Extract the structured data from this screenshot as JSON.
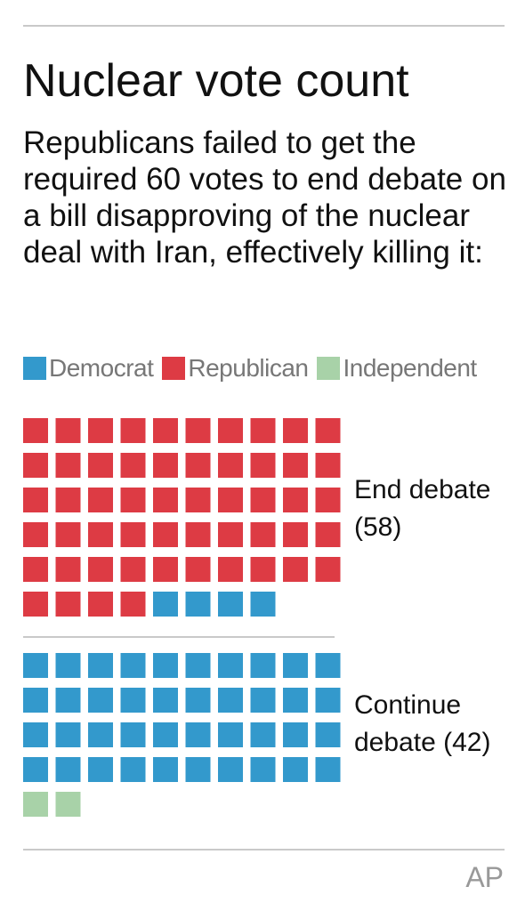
{
  "title": "Nuclear vote count",
  "subtitle": "Republicans failed to get the required 60 votes to end debate on a bill disapproving of the nuclear deal with Iran, effectively killing it:",
  "legend": [
    {
      "name": "Democrat",
      "color": "#3399cc"
    },
    {
      "name": "Republican",
      "color": "#dd3b44"
    },
    {
      "name": "Independent",
      "color": "#a8d2a8"
    }
  ],
  "credit": "AP",
  "chart_data": {
    "type": "waffle",
    "title": "Nuclear vote count",
    "legend_position": "top",
    "grid": false,
    "units_per_square": 1,
    "columns": 10,
    "groups": [
      {
        "label_line1": "End debate",
        "label_line2": "(58)",
        "total": 58,
        "counts": [
          {
            "party": "Republican",
            "value": 54
          },
          {
            "party": "Democrat",
            "value": 4
          }
        ]
      },
      {
        "label_line1": "Continue",
        "label_line2": "debate (42)",
        "total": 42,
        "counts": [
          {
            "party": "Democrat",
            "value": 40
          },
          {
            "party": "Independent",
            "value": 2
          }
        ]
      }
    ]
  }
}
